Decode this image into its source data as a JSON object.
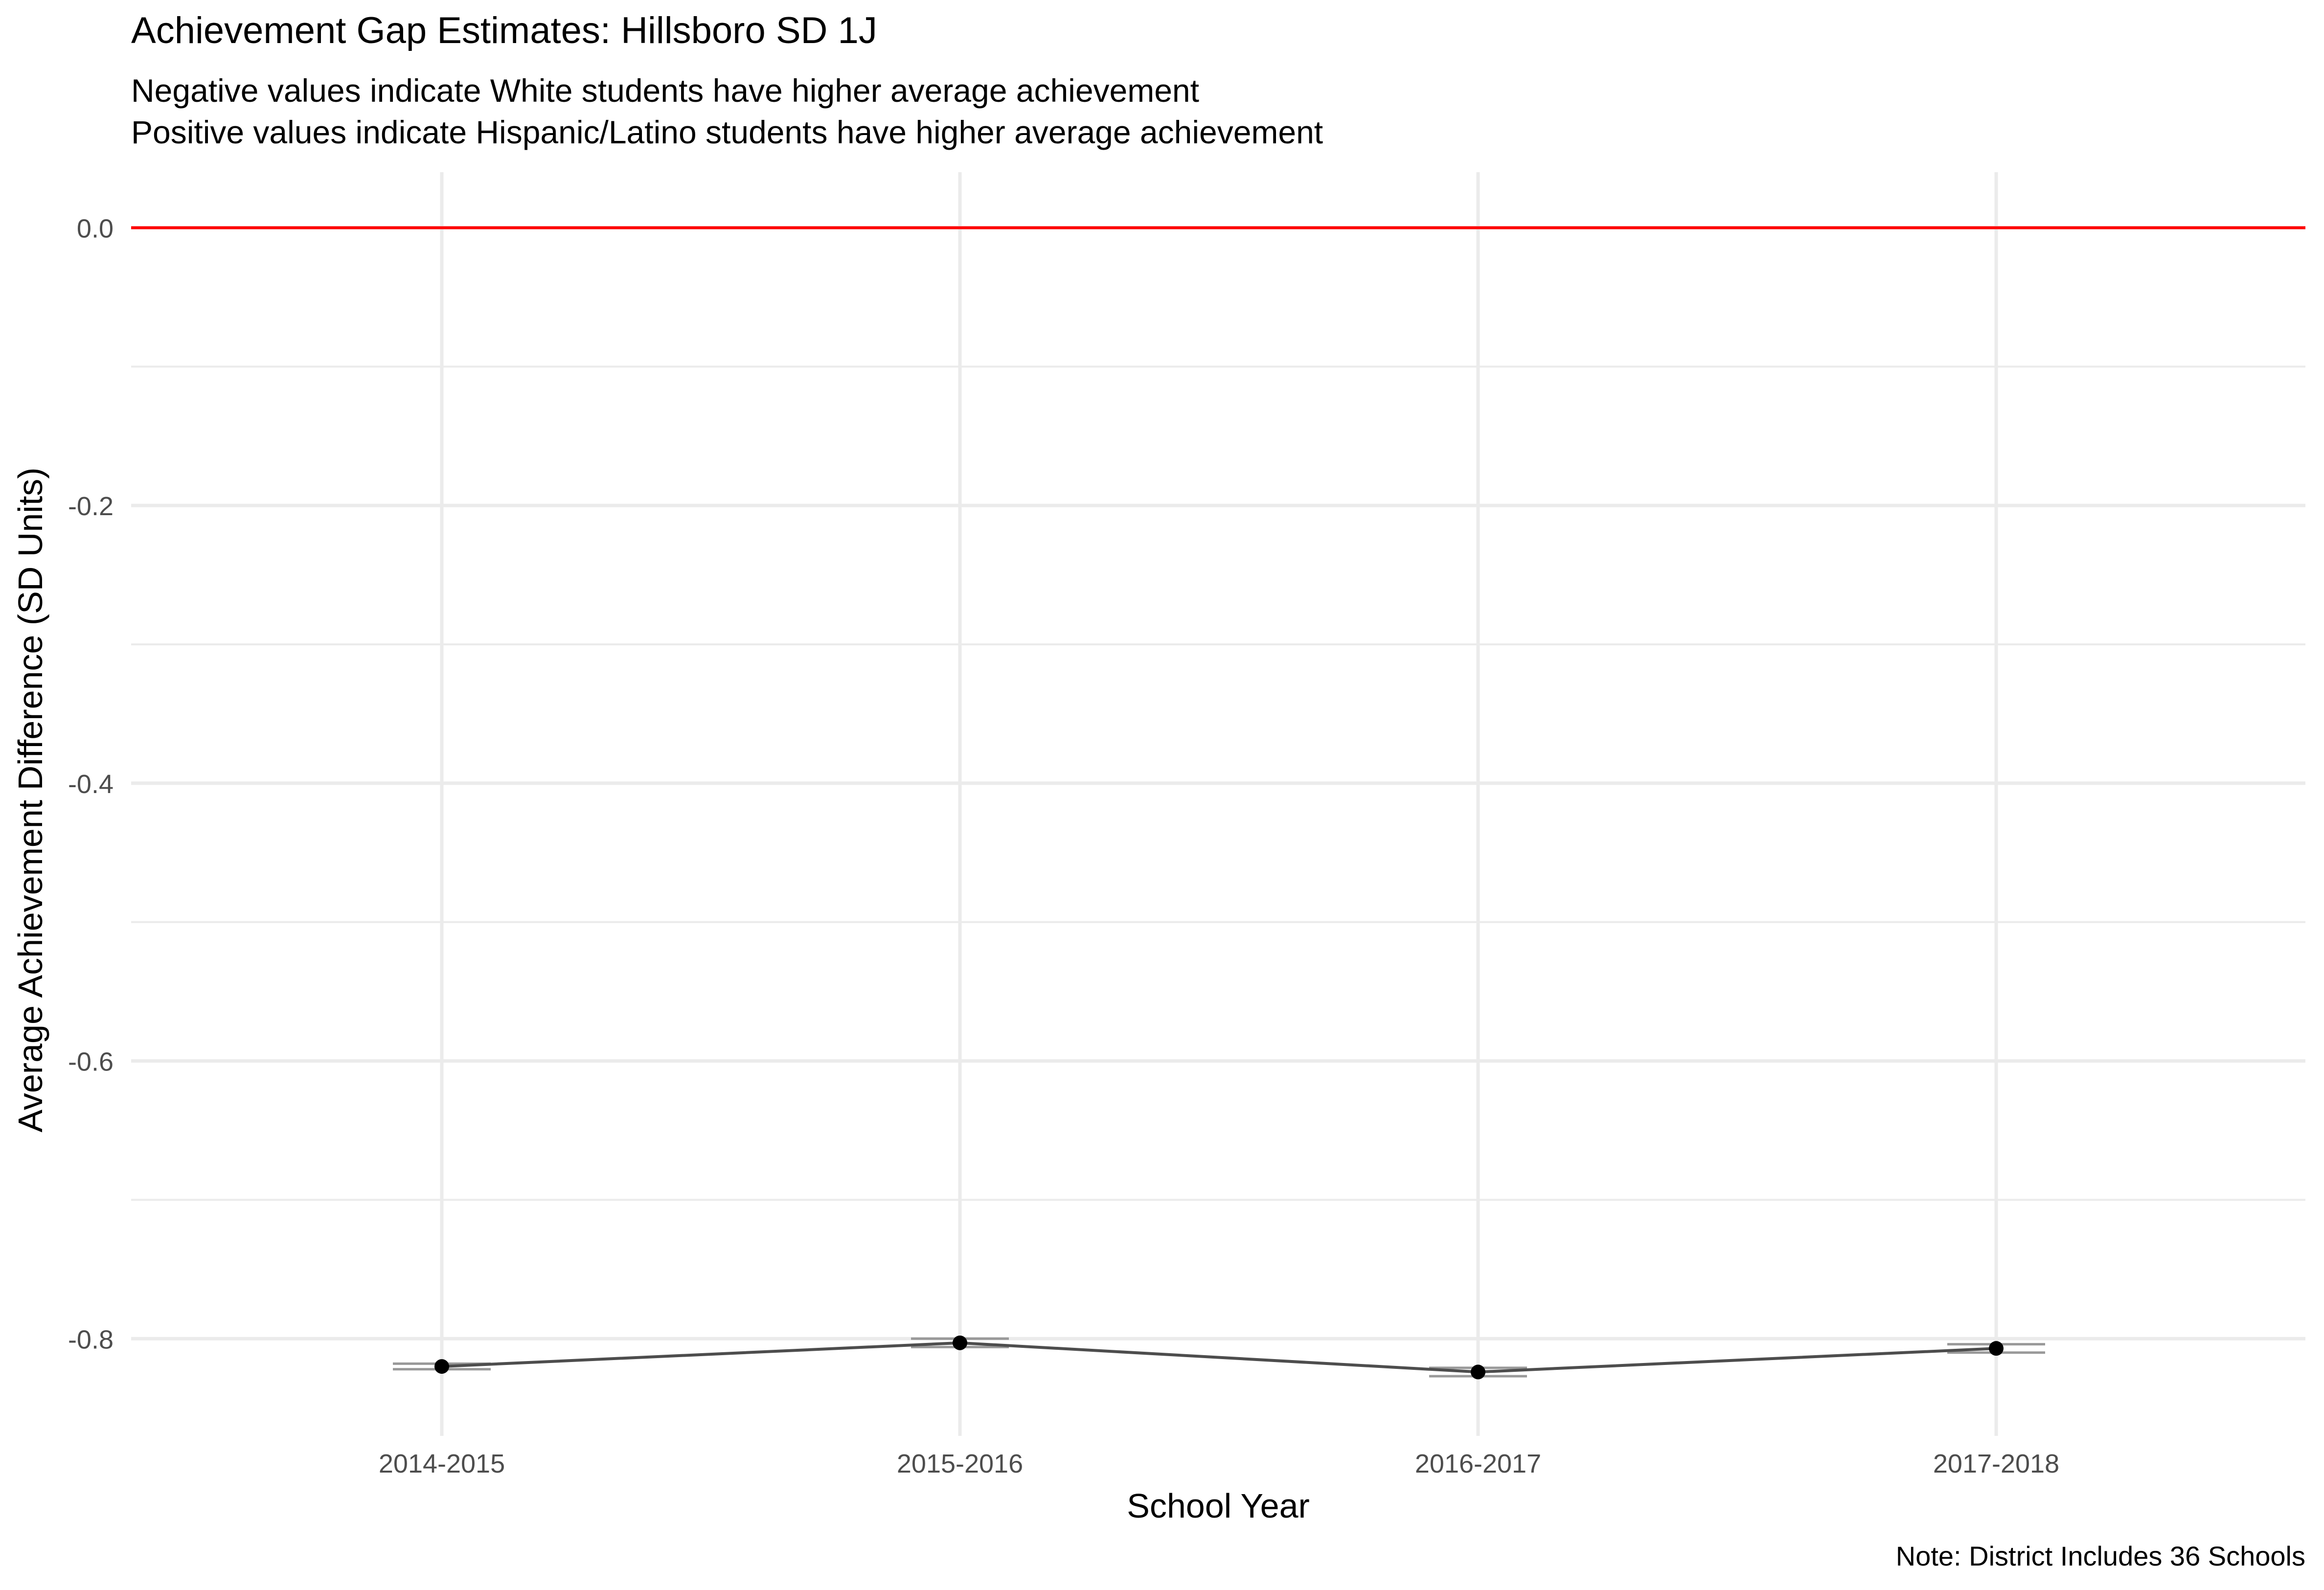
{
  "chart_data": {
    "type": "line",
    "title": "Achievement Gap Estimates: Hillsboro SD 1J",
    "subtitle": [
      "Negative values indicate White students have higher average achievement",
      "Positive values indicate Hispanic/Latino students have higher average achievement"
    ],
    "xlabel": "School Year",
    "ylabel": "Average Achievement Difference (SD Units)",
    "caption": "Note: District Includes 36 Schools",
    "categories": [
      "2014-2015",
      "2015-2016",
      "2016-2017",
      "2017-2018"
    ],
    "values": [
      -0.82,
      -0.803,
      -0.824,
      -0.807
    ],
    "ci_low": [
      -0.822,
      -0.806,
      -0.827,
      -0.81
    ],
    "ci_high": [
      -0.818,
      -0.8,
      -0.821,
      -0.804
    ],
    "ylim": [
      -0.87,
      0.04
    ],
    "yticks": [
      0.0,
      -0.2,
      -0.4,
      -0.6,
      -0.8
    ],
    "ytick_labels": [
      "0.0",
      "-0.2",
      "-0.4",
      "-0.6",
      "-0.8"
    ],
    "reference_line": 0.0,
    "grid": true,
    "legend": "none",
    "colors": {
      "reference_line": "#ff0000",
      "series_line": "#4d4d4d",
      "points": "#000000",
      "error_bars": "#999999",
      "grid": "#ebebeb"
    }
  }
}
